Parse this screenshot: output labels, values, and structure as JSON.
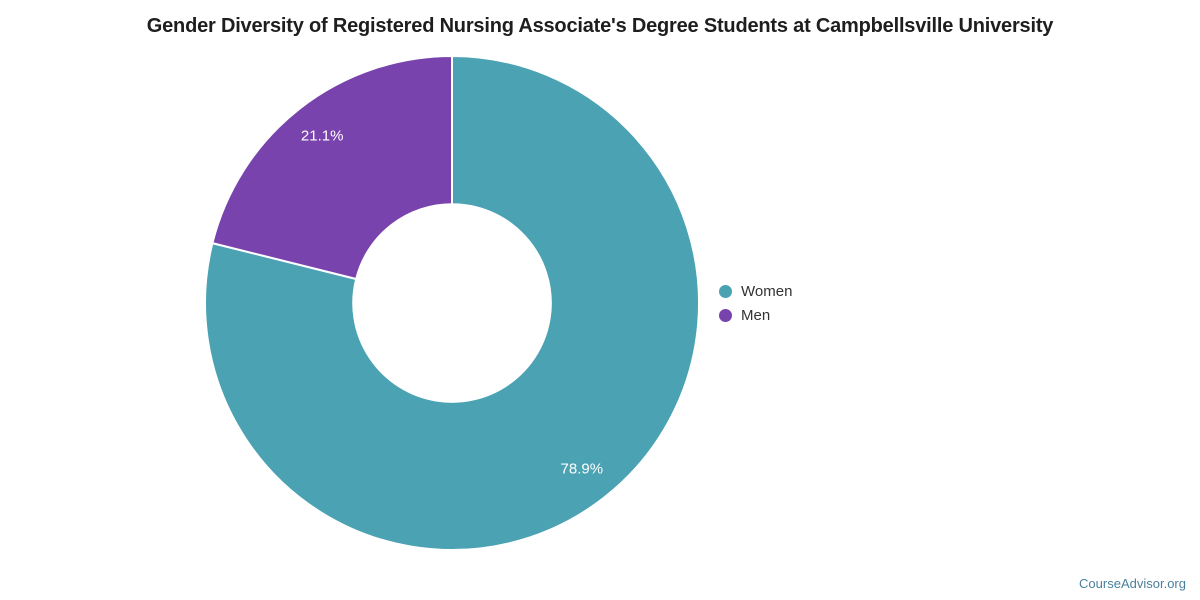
{
  "title": {
    "text": "Gender Diversity of Registered Nursing Associate's Degree Students at Campbellsville University",
    "color": "#1e1e1e"
  },
  "watermark": {
    "text": "CourseAdvisor.org",
    "color": "#4A809E"
  },
  "chart_data": {
    "type": "pie",
    "subtype": "donut",
    "title": "Gender Diversity of Registered Nursing Associate's Degree Students at Campbellsville University",
    "categories": [
      "Women",
      "Men"
    ],
    "values": [
      78.9,
      21.1
    ],
    "slice_labels": [
      "78.9%",
      "21.1%"
    ],
    "colors": [
      "#4AA2B2",
      "#7943AD"
    ],
    "unit": "%",
    "start_angle_deg": 0,
    "direction": "clockwise",
    "inner_radius_ratio": 0.4,
    "label_color": "#ffffff",
    "border_color": "#ffffff",
    "legend_position": "right",
    "legend_marker": "circle"
  }
}
